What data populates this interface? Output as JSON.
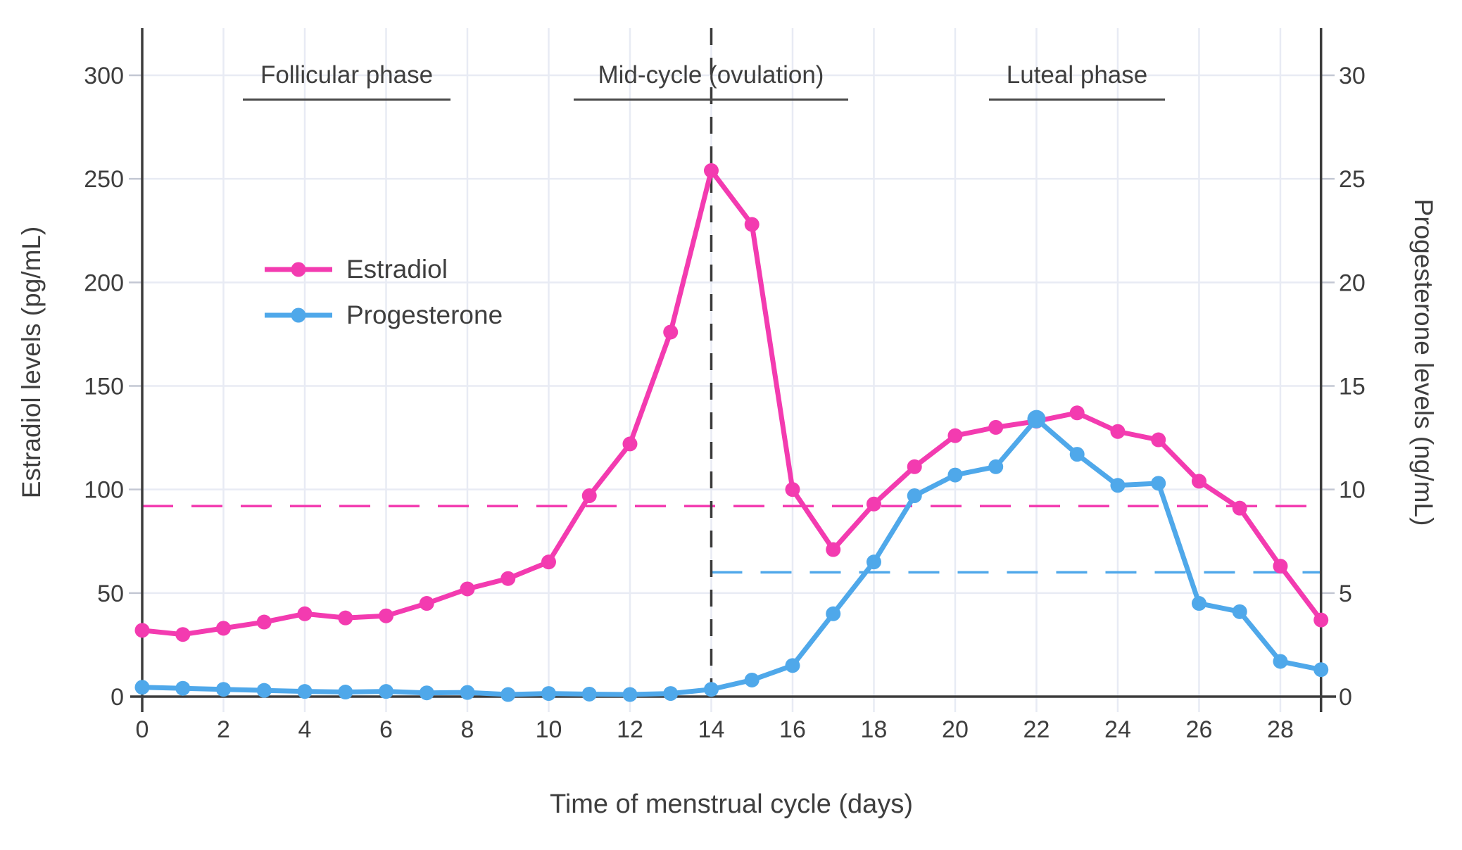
{
  "colors": {
    "estradiol": "#f33bb0",
    "progesterone": "#4fa8ea",
    "axis": "#3c3c3c",
    "grid": "#e8ebf4",
    "tick_stub": "#c3c7d3",
    "text": "#3e3e3e",
    "vline": "#3b3b3b"
  },
  "legend": {
    "items": [
      {
        "label": "Estradiol",
        "color": "#f33bb0"
      },
      {
        "label": "Progesterone",
        "color": "#4fa8ea"
      }
    ]
  },
  "annotations": {
    "follicular": {
      "text": "Follicular phase",
      "center_day": 5
    },
    "midcycle": {
      "text": "Mid-cycle (ovulation)",
      "center_day": 14
    },
    "luteal": {
      "text": "Luteal phase",
      "center_day": 23
    }
  },
  "axes": {
    "x_label": "Time of menstrual cycle (days)",
    "y_left_label": "Estradiol levels (pg/mL)",
    "y_right_label": "Progesterone levels (ng/mL)",
    "x_ticks": [
      0,
      2,
      4,
      6,
      8,
      10,
      12,
      14,
      16,
      18,
      20,
      22,
      24,
      26,
      28
    ],
    "y_left_ticks": [
      0,
      50,
      100,
      150,
      200,
      250,
      300
    ],
    "y_right_ticks": [
      0,
      5,
      10,
      15,
      20,
      25,
      30
    ]
  },
  "chart_data": {
    "type": "line",
    "title": "",
    "xlabel": "Time of menstrual cycle (days)",
    "ylabel_left": "Estradiol levels (pg/mL)",
    "ylabel_right": "Progesterone levels (ng/mL)",
    "x_range": [
      0,
      29
    ],
    "ylim_left": [
      0,
      300
    ],
    "ylim_right": [
      0,
      30
    ],
    "grid": true,
    "legend_position": "upper-left-inside",
    "x": [
      0,
      1,
      2,
      3,
      4,
      5,
      6,
      7,
      8,
      9,
      10,
      11,
      12,
      13,
      14,
      15,
      16,
      17,
      18,
      19,
      20,
      21,
      22,
      23,
      24,
      25,
      26,
      27,
      28,
      29
    ],
    "series": [
      {
        "name": "Estradiol",
        "axis": "left",
        "unit": "pg/mL",
        "color": "#f33bb0",
        "values": [
          32,
          30,
          33,
          36,
          40,
          38,
          39,
          45,
          52,
          57,
          65,
          97,
          122,
          176,
          254,
          228,
          100,
          71,
          93,
          111,
          126,
          130,
          133,
          137,
          128,
          124,
          104,
          91,
          63,
          37
        ]
      },
      {
        "name": "Progesterone",
        "axis": "right",
        "unit": "ng/mL",
        "color": "#4fa8ea",
        "values": [
          0.45,
          0.4,
          0.35,
          0.3,
          0.25,
          0.22,
          0.25,
          0.18,
          0.2,
          0.1,
          0.15,
          0.12,
          0.1,
          0.15,
          0.35,
          0.8,
          1.5,
          4.0,
          6.5,
          9.7,
          10.7,
          11.1,
          13.4,
          11.7,
          10.2,
          10.3,
          4.5,
          4.1,
          1.7,
          1.3
        ],
        "highlight_index": 22
      }
    ],
    "reference_lines": [
      {
        "orientation": "horizontal",
        "series": "Estradiol",
        "value": 92,
        "unit": "pg/mL",
        "style": "dashed",
        "color": "#f33bb0",
        "span": "full"
      },
      {
        "orientation": "horizontal",
        "series": "Progesterone",
        "value": 6,
        "unit": "ng/mL",
        "style": "dashed",
        "color": "#4fa8ea",
        "from_day": 14,
        "to_day": 29
      },
      {
        "orientation": "vertical",
        "day": 14,
        "style": "dashed",
        "color": "#3b3b3b",
        "label": "ovulation"
      }
    ]
  }
}
